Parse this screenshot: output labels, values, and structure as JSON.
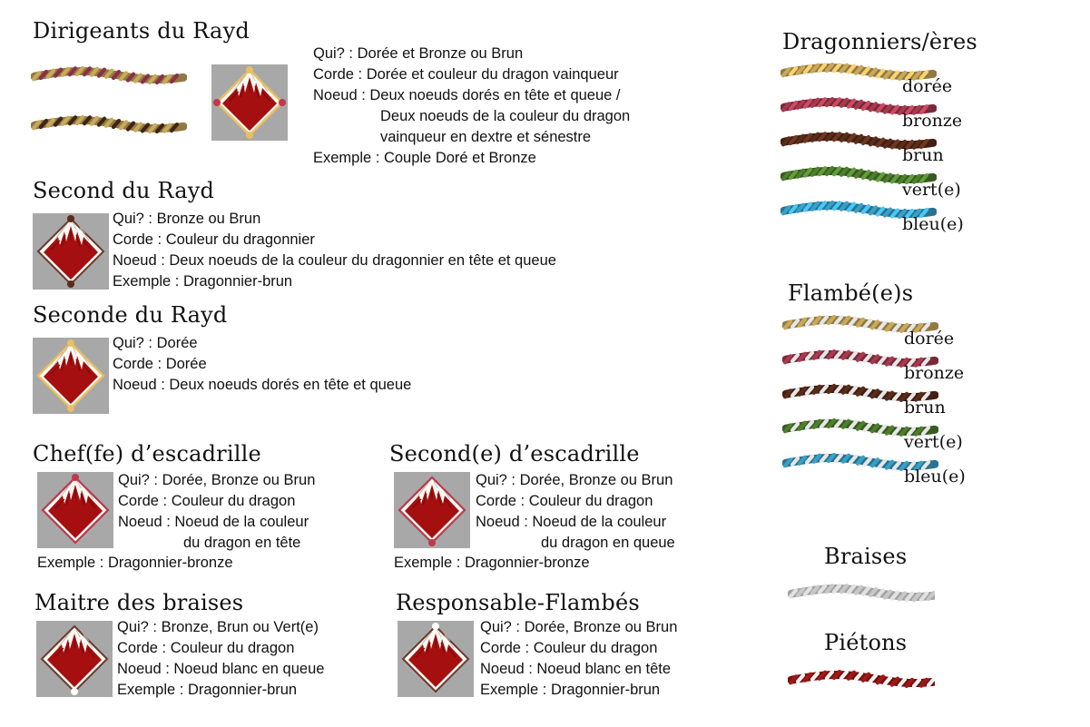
{
  "sections": {
    "dirigeants": {
      "title": "Dirigeants du Rayd",
      "lines": [
        "Qui? : Dorée et Bronze ou Brun",
        "Corde : Dorée et couleur du dragon vainqueur",
        "Noeud : Deux noeuds dorés en tête et queue /",
        "Deux noeuds de la couleur du dragon",
        "vainqueur en dextre et sénestre",
        "Exemple : Couple Doré et Bronze"
      ]
    },
    "second_rayd": {
      "title": "Second du Rayd",
      "lines": [
        "Qui? : Bronze ou Brun",
        "Corde : Couleur du dragonnier",
        "Noeud : Deux noeuds de la couleur du dragonnier en tête et queue",
        "Exemple : Dragonnier-brun"
      ]
    },
    "seconde_rayd": {
      "title": "Seconde du Rayd",
      "lines": [
        "Qui? : Dorée",
        "Corde : Dorée",
        "Noeud : Deux noeuds dorés en tête et queue"
      ]
    },
    "chef_escadrille": {
      "title": "Chef(fe) d’escadrille",
      "lines": [
        "Qui? : Dorée, Bronze ou Brun",
        "Corde : Couleur du dragon",
        "Noeud : Noeud de la couleur",
        "du dragon en tête"
      ],
      "example": "Exemple : Dragonnier-bronze"
    },
    "second_escadrille": {
      "title": "Second(e) d’escadrille",
      "lines": [
        "Qui? : Dorée, Bronze ou Brun",
        "Corde : Couleur du dragon",
        "Noeud : Noeud de la couleur",
        "du dragon en queue"
      ],
      "example": "Exemple : Dragonnier-bronze"
    },
    "maitre_braises": {
      "title": "Maitre des braises",
      "lines": [
        "Qui? : Bronze, Brun ou Vert(e)",
        "Corde : Couleur du dragon",
        "Noeud : Noeud blanc en queue",
        "Exemple : Dragonnier-brun"
      ]
    },
    "responsable_flambes": {
      "title": "Responsable-Flambés",
      "lines": [
        "Qui? : Dorée, Bronze ou Brun",
        "Corde : Couleur du dragon",
        "Noeud : Noeud blanc en tête",
        "Exemple : Dragonnier-brun"
      ]
    }
  },
  "legend": {
    "dragonniers": {
      "title": "Dragonniers/ères",
      "items": [
        {
          "label": "dorée",
          "color": "#c9a95b"
        },
        {
          "label": "bronze",
          "color": "#a83a50"
        },
        {
          "label": "brun",
          "color": "#5a2c1a"
        },
        {
          "label": "vert(e)",
          "color": "#4e7f2e"
        },
        {
          "label": "bleu(e)",
          "color": "#3aa0c8"
        }
      ]
    },
    "flambes": {
      "title": "Flambé(e)s",
      "items": [
        {
          "label": "dorée",
          "color": "#c9a95b"
        },
        {
          "label": "bronze",
          "color": "#a83a50"
        },
        {
          "label": "brun",
          "color": "#5a2c1a"
        },
        {
          "label": "vert(e)",
          "color": "#4e7f2e"
        },
        {
          "label": "bleu(e)",
          "color": "#3aa0c8"
        }
      ]
    },
    "braises": {
      "title": "Braises",
      "color": "#d8d8d8"
    },
    "pietons": {
      "title": "Piétons",
      "color": "#a01818"
    }
  },
  "colors": {
    "badge_bg": "#a8a8a8",
    "flame": "#a50f0f",
    "gold_knot": "#e8c061",
    "brown_knot": "#5a2c1a",
    "bronze_knot": "#c0384c",
    "white_knot": "#ffffff"
  }
}
